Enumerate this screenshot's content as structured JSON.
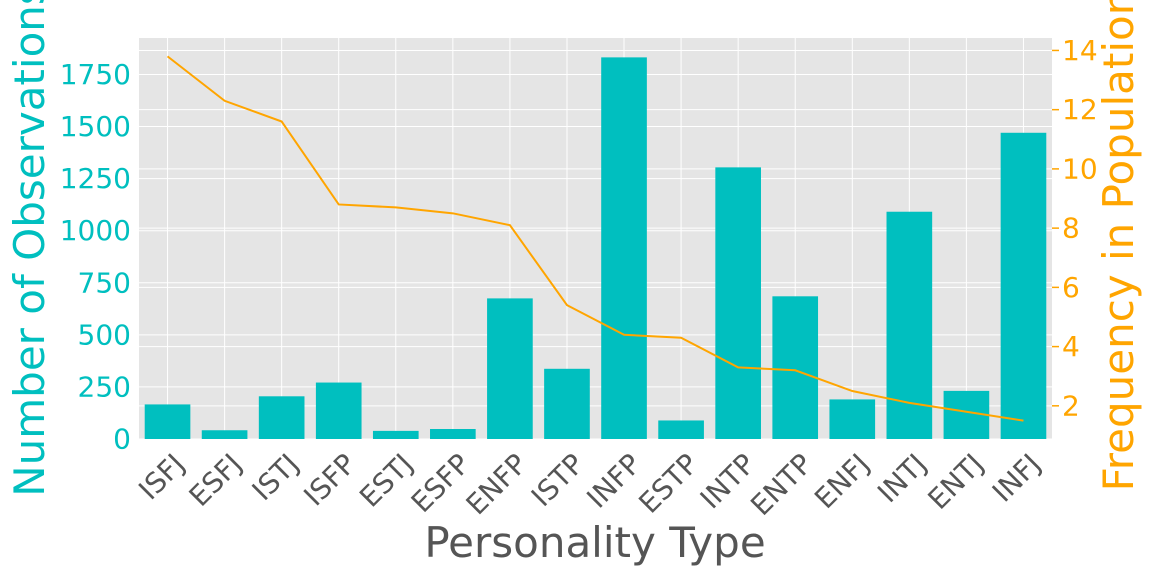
{
  "chart_data": {
    "type": "bar",
    "xlabel": "Personality Type",
    "categories": [
      "ISFJ",
      "ESFJ",
      "ISTJ",
      "ISFP",
      "ESTJ",
      "ESFP",
      "ENFP",
      "ISTP",
      "INFP",
      "ESTP",
      "INTP",
      "ENTP",
      "ENFJ",
      "INTJ",
      "ENTJ",
      "INFJ"
    ],
    "series": [
      {
        "type": "bar",
        "axis": "left",
        "color": "#00BFBF",
        "values": [
          166,
          42,
          205,
          271,
          39,
          48,
          675,
          337,
          1832,
          89,
          1304,
          685,
          190,
          1091,
          231,
          1470
        ]
      },
      {
        "type": "line",
        "axis": "right",
        "color": "#FFA500",
        "values": [
          13.8,
          12.3,
          11.6,
          8.8,
          8.7,
          8.5,
          8.1,
          5.4,
          4.4,
          4.3,
          3.3,
          3.2,
          2.5,
          2.1,
          1.8,
          1.5
        ]
      }
    ],
    "y_left": {
      "label": "Number of Observations",
      "color": "#00BFBF",
      "ylim": [
        0,
        1925
      ],
      "ticks": [
        0,
        250,
        500,
        750,
        1000,
        1250,
        1500,
        1750
      ]
    },
    "y_right": {
      "label": "Frequency in Population",
      "color": "#FFA500",
      "ylim": [
        0.88,
        14.42
      ],
      "ticks": [
        2,
        4,
        6,
        8,
        10,
        12,
        14
      ]
    },
    "grid": true,
    "background": "#E5E5E5"
  }
}
